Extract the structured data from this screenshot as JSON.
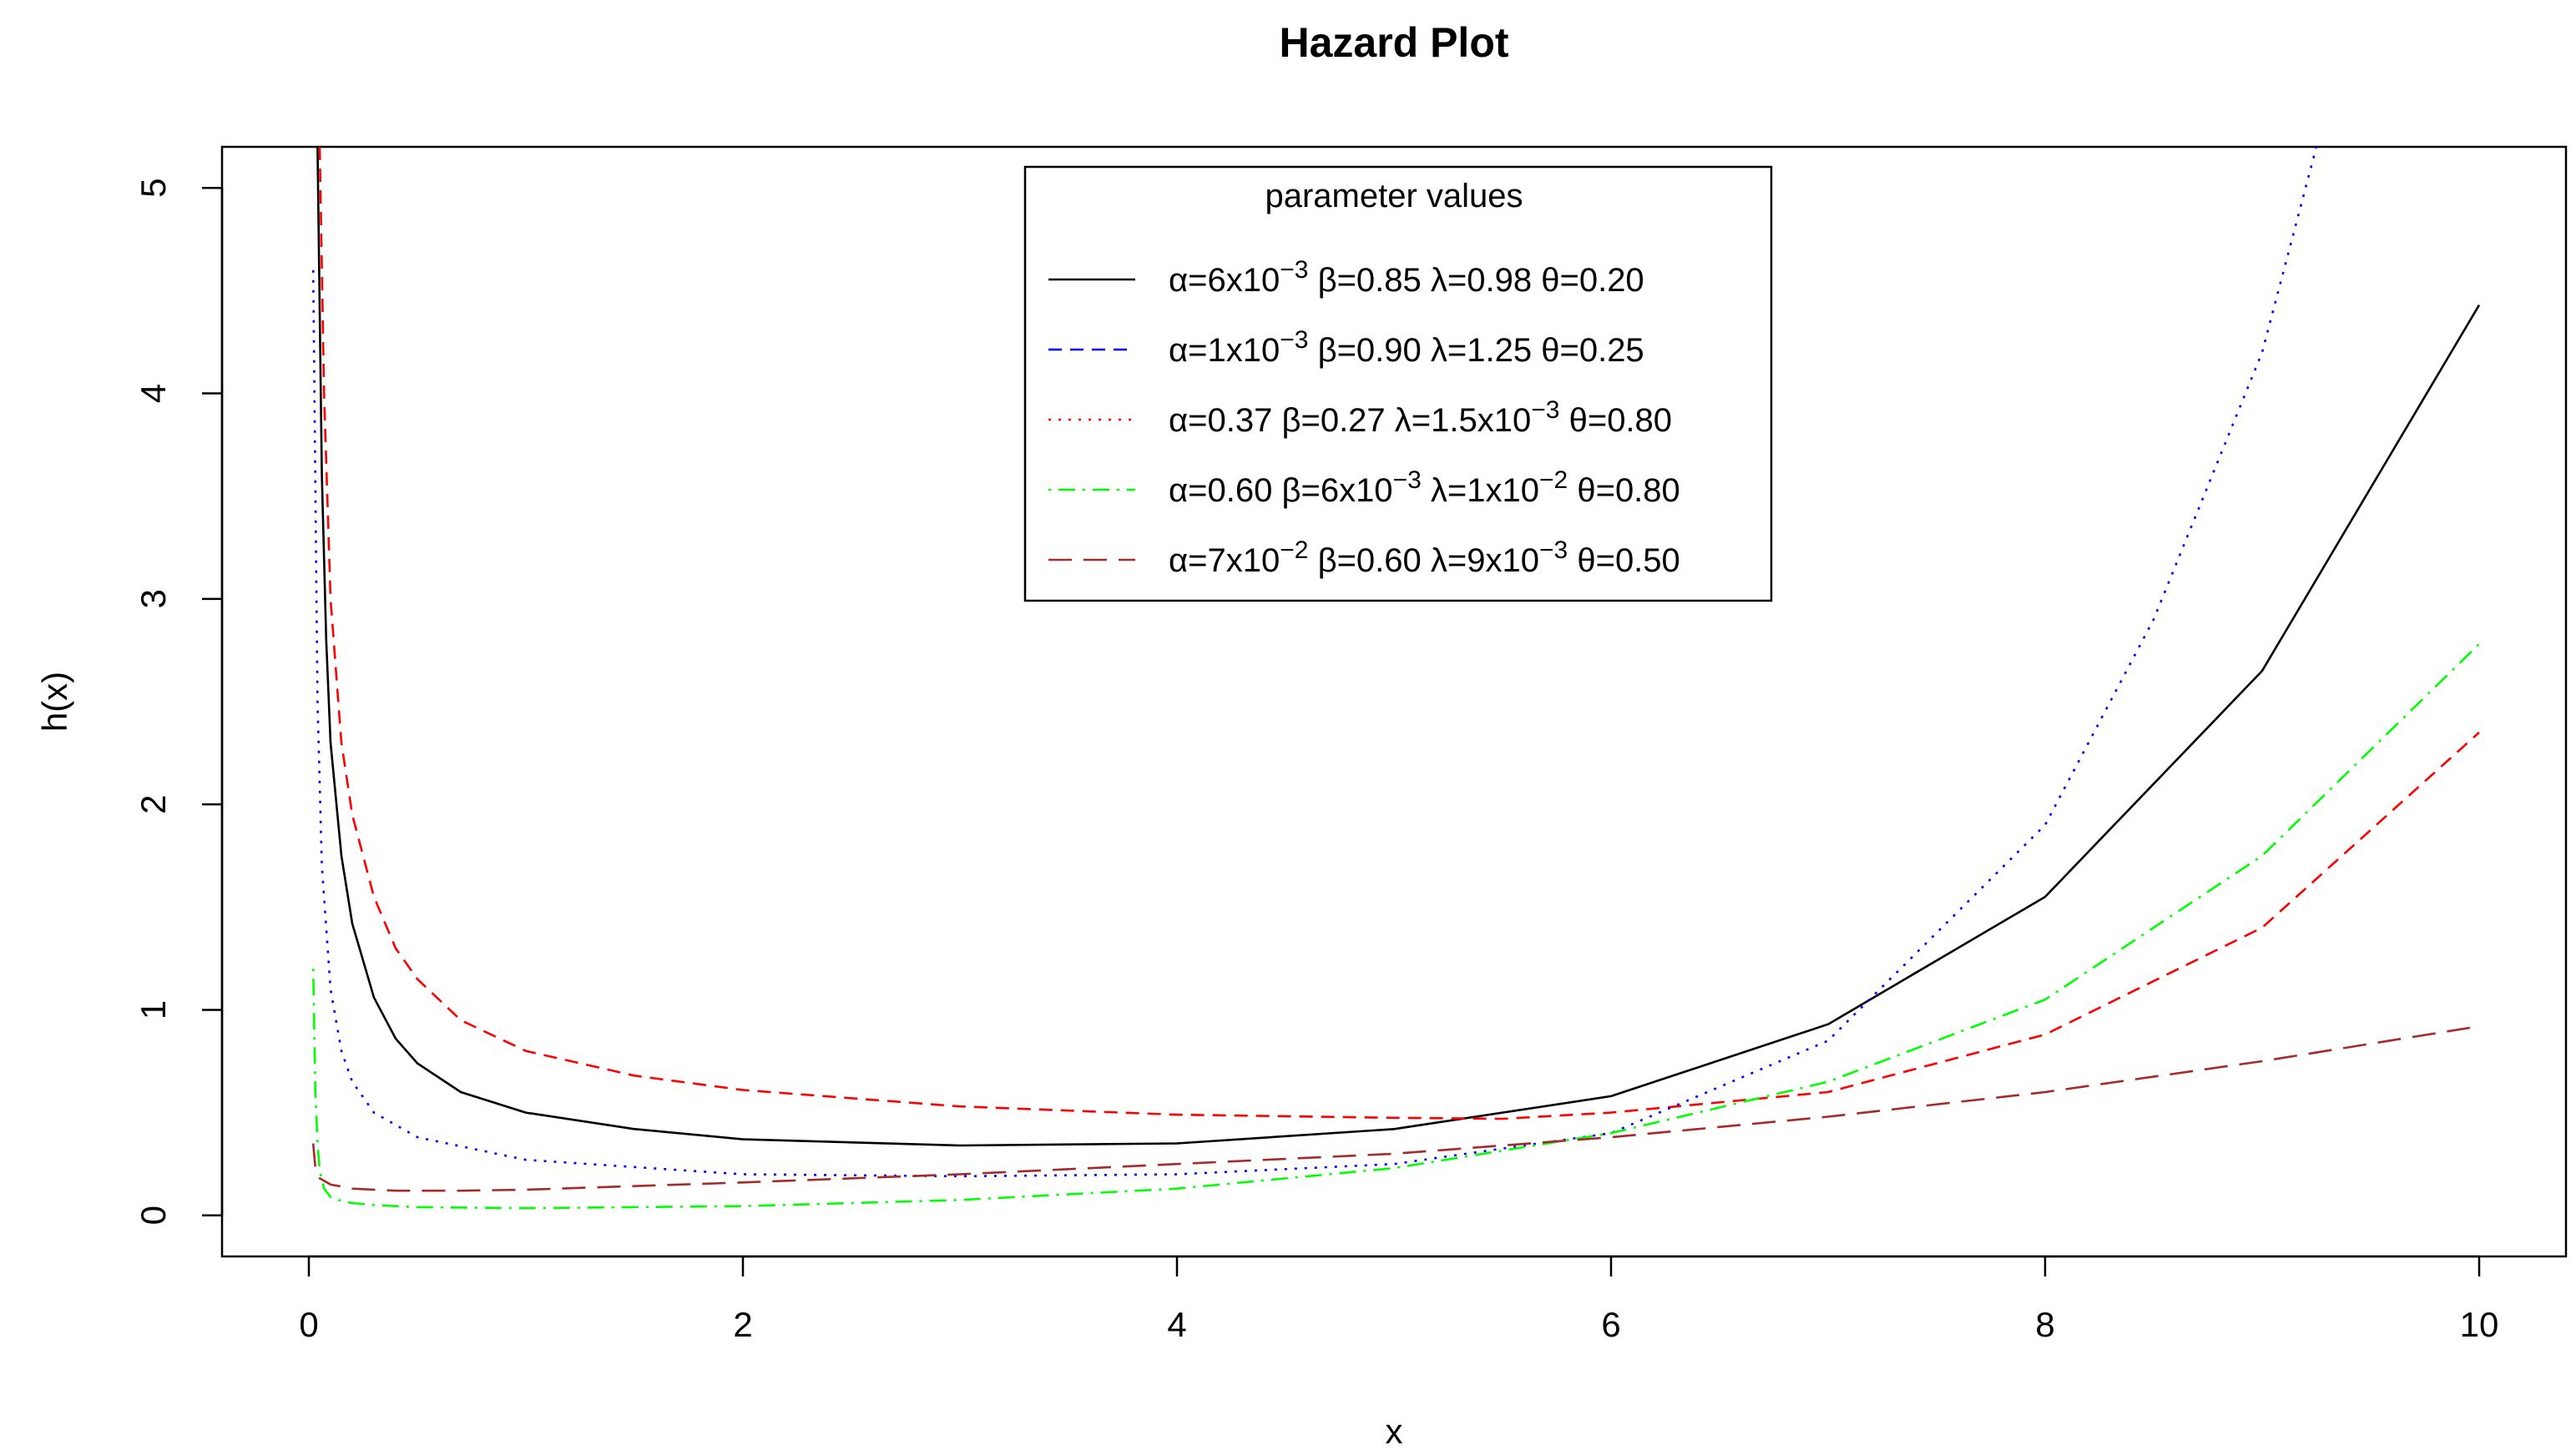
{
  "chart_data": {
    "type": "line",
    "title": "Hazard Plot",
    "xlabel": "x",
    "ylabel": "h(x)",
    "xlim": [
      -0.4,
      10.4
    ],
    "ylim": [
      -0.2,
      5.2
    ],
    "xticks": [
      0,
      2,
      4,
      6,
      8,
      10
    ],
    "yticks": [
      0,
      1,
      2,
      3,
      4,
      5
    ],
    "grid": false,
    "legend": {
      "title": "parameter values",
      "placement": "top-center",
      "entries": [
        {
          "a": "α=6x10",
          "a_exp": "−3",
          "b": " β=0.85 λ=0.98 θ=0.20"
        },
        {
          "a": "α=1x10",
          "a_exp": "−3",
          "b": " β=0.90 λ=1.25 θ=0.25"
        },
        {
          "a": "α=0.37 β=0.27 λ=1.5x10",
          "a_exp": "−3",
          "b": " θ=0.80"
        },
        {
          "a": "α=0.60 β=6x10",
          "a_exp": "−3",
          "b": " λ=1x10",
          "b_exp": "−2",
          "c": " θ=0.80"
        },
        {
          "a": "α=7x10",
          "a_exp": "−2",
          "b": " β=0.60 λ=9x10",
          "b_exp": "−3",
          "c": " θ=0.50"
        }
      ]
    },
    "series": [
      {
        "color": "#000000",
        "dash": "solid",
        "x": [
          0.04,
          0.06,
          0.08,
          0.1,
          0.15,
          0.2,
          0.3,
          0.4,
          0.5,
          0.7,
          1.0,
          1.5,
          2.0,
          3.0,
          4.0,
          5.0,
          6.0,
          7.0,
          8.0,
          9.0,
          10.0
        ],
        "y": [
          5.2,
          3.6,
          2.8,
          2.3,
          1.75,
          1.42,
          1.06,
          0.86,
          0.74,
          0.6,
          0.5,
          0.42,
          0.37,
          0.34,
          0.35,
          0.42,
          0.58,
          0.93,
          1.55,
          2.65,
          4.43
        ]
      },
      {
        "color": "#ff0000",
        "dash": "dashed",
        "x": [
          0.05,
          0.07,
          0.1,
          0.15,
          0.2,
          0.3,
          0.4,
          0.5,
          0.7,
          1.0,
          1.5,
          2.0,
          3.0,
          4.0,
          5.0,
          5.5,
          6.0,
          7.0,
          8.0,
          9.0,
          10.0
        ],
        "y": [
          5.2,
          4.0,
          3.0,
          2.3,
          1.95,
          1.55,
          1.3,
          1.15,
          0.95,
          0.8,
          0.68,
          0.61,
          0.53,
          0.49,
          0.475,
          0.47,
          0.5,
          0.6,
          0.88,
          1.4,
          2.35
        ]
      },
      {
        "color": "#0000ff",
        "dash": "dotted",
        "x": [
          0.02,
          0.04,
          0.06,
          0.1,
          0.15,
          0.2,
          0.3,
          0.5,
          1.0,
          2.0,
          3.0,
          4.0,
          5.0,
          6.0,
          7.0,
          8.0,
          8.5,
          9.0,
          9.25
        ],
        "y": [
          4.6,
          2.5,
          1.7,
          1.1,
          0.8,
          0.65,
          0.5,
          0.38,
          0.27,
          0.2,
          0.19,
          0.2,
          0.25,
          0.4,
          0.85,
          1.9,
          2.9,
          4.2,
          5.2
        ]
      },
      {
        "color": "#00ff00",
        "dash": "dotdash",
        "x": [
          0.02,
          0.03,
          0.04,
          0.05,
          0.07,
          0.1,
          0.15,
          0.2,
          0.3,
          0.5,
          1.0,
          2.0,
          3.0,
          4.0,
          5.0,
          6.0,
          7.0,
          8.0,
          9.0,
          10.0
        ],
        "y": [
          1.2,
          0.6,
          0.35,
          0.22,
          0.13,
          0.09,
          0.07,
          0.06,
          0.05,
          0.04,
          0.035,
          0.045,
          0.075,
          0.13,
          0.23,
          0.4,
          0.65,
          1.05,
          1.75,
          2.78
        ]
      },
      {
        "color": "#a52a2a",
        "dash": "longdash",
        "x": [
          0.02,
          0.03,
          0.05,
          0.1,
          0.2,
          0.4,
          0.7,
          1.0,
          2.0,
          3.0,
          4.0,
          5.0,
          6.0,
          7.0,
          8.0,
          9.0,
          10.0
        ],
        "y": [
          0.35,
          0.23,
          0.18,
          0.15,
          0.13,
          0.12,
          0.12,
          0.125,
          0.16,
          0.2,
          0.25,
          0.3,
          0.38,
          0.48,
          0.6,
          0.75,
          0.92
        ]
      }
    ]
  }
}
